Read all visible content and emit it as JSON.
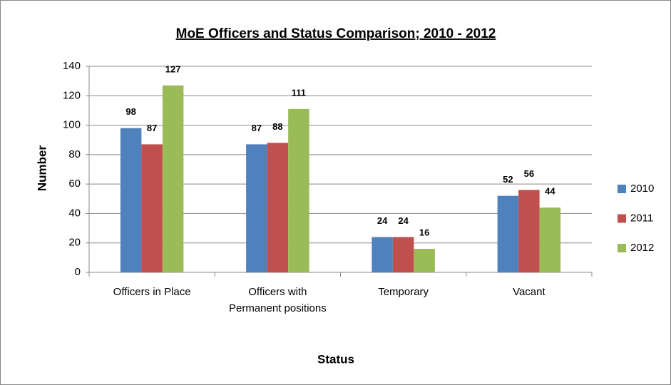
{
  "chart_data": {
    "type": "bar",
    "title": "MoE Officers and Status Comparison; 2010 - 2012",
    "x_label": "Status",
    "y_label": "Number",
    "categories": [
      "Officers in Place",
      "Officers with Permanent positions",
      "Temporary",
      "Vacant"
    ],
    "series": [
      {
        "name": "2010",
        "color": "#4f81bd",
        "values": [
          98,
          87,
          24,
          52
        ]
      },
      {
        "name": "2011",
        "color": "#c0504d",
        "values": [
          87,
          88,
          24,
          56
        ]
      },
      {
        "name": "2012",
        "color": "#9bbb59",
        "values": [
          127,
          111,
          16,
          44
        ]
      }
    ],
    "ylim": [
      0,
      140
    ],
    "yticks": [
      0,
      20,
      40,
      60,
      80,
      100,
      120,
      140
    ],
    "grid": true,
    "legend": "right"
  }
}
